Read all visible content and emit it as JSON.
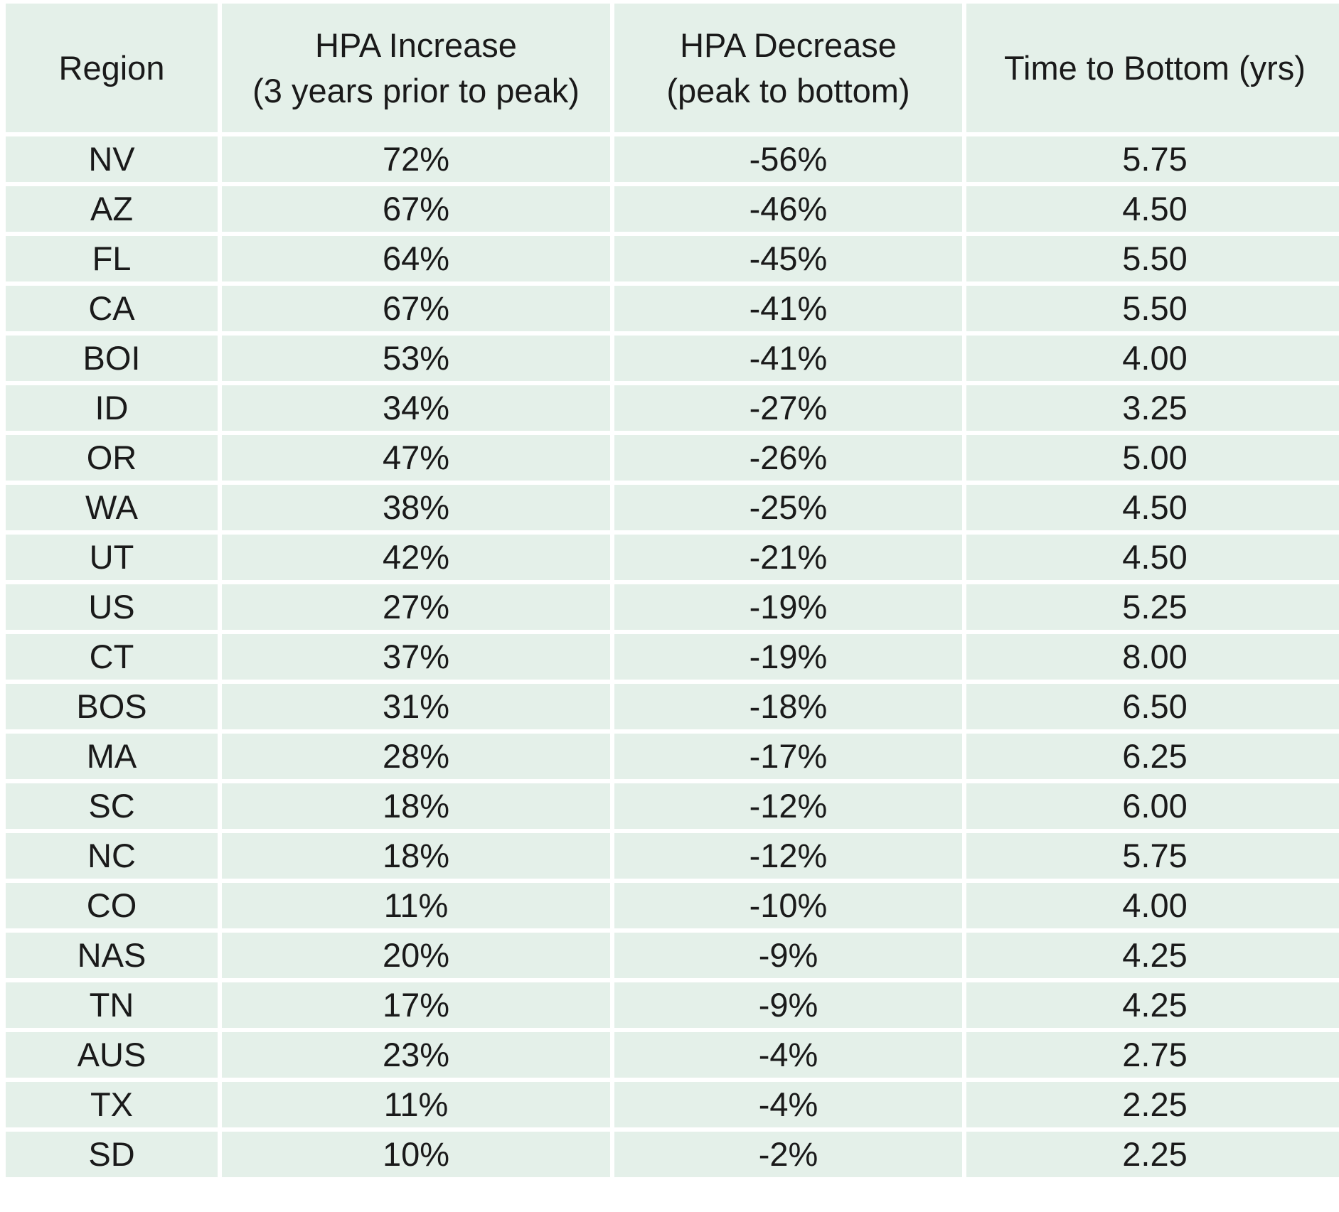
{
  "chart_data": {
    "type": "table",
    "columns": [
      {
        "line1": "Region",
        "line2": ""
      },
      {
        "line1": "HPA Increase",
        "line2": "(3 years prior to peak)"
      },
      {
        "line1": "HPA Decrease",
        "line2": "(peak to bottom)"
      },
      {
        "line1": "Time to Bottom (yrs)",
        "line2": ""
      }
    ],
    "rows": [
      [
        "NV",
        "72%",
        "-56%",
        "5.75"
      ],
      [
        "AZ",
        "67%",
        "-46%",
        "4.50"
      ],
      [
        "FL",
        "64%",
        "-45%",
        "5.50"
      ],
      [
        "CA",
        "67%",
        "-41%",
        "5.50"
      ],
      [
        "BOI",
        "53%",
        "-41%",
        "4.00"
      ],
      [
        "ID",
        "34%",
        "-27%",
        "3.25"
      ],
      [
        "OR",
        "47%",
        "-26%",
        "5.00"
      ],
      [
        "WA",
        "38%",
        "-25%",
        "4.50"
      ],
      [
        "UT",
        "42%",
        "-21%",
        "4.50"
      ],
      [
        "US",
        "27%",
        "-19%",
        "5.25"
      ],
      [
        "CT",
        "37%",
        "-19%",
        "8.00"
      ],
      [
        "BOS",
        "31%",
        "-18%",
        "6.50"
      ],
      [
        "MA",
        "28%",
        "-17%",
        "6.25"
      ],
      [
        "SC",
        "18%",
        "-12%",
        "6.00"
      ],
      [
        "NC",
        "18%",
        "-12%",
        "5.75"
      ],
      [
        "CO",
        "11%",
        "-10%",
        "4.00"
      ],
      [
        "NAS",
        "20%",
        "-9%",
        "4.25"
      ],
      [
        "TN",
        "17%",
        "-9%",
        "4.25"
      ],
      [
        "AUS",
        "23%",
        "-4%",
        "2.75"
      ],
      [
        "TX",
        "11%",
        "-4%",
        "2.25"
      ],
      [
        "SD",
        "10%",
        "-2%",
        "2.25"
      ]
    ],
    "colors": {
      "cell_background": "#e4f0e9",
      "gridline": "#ffffff",
      "text": "#1a1a1a"
    }
  }
}
